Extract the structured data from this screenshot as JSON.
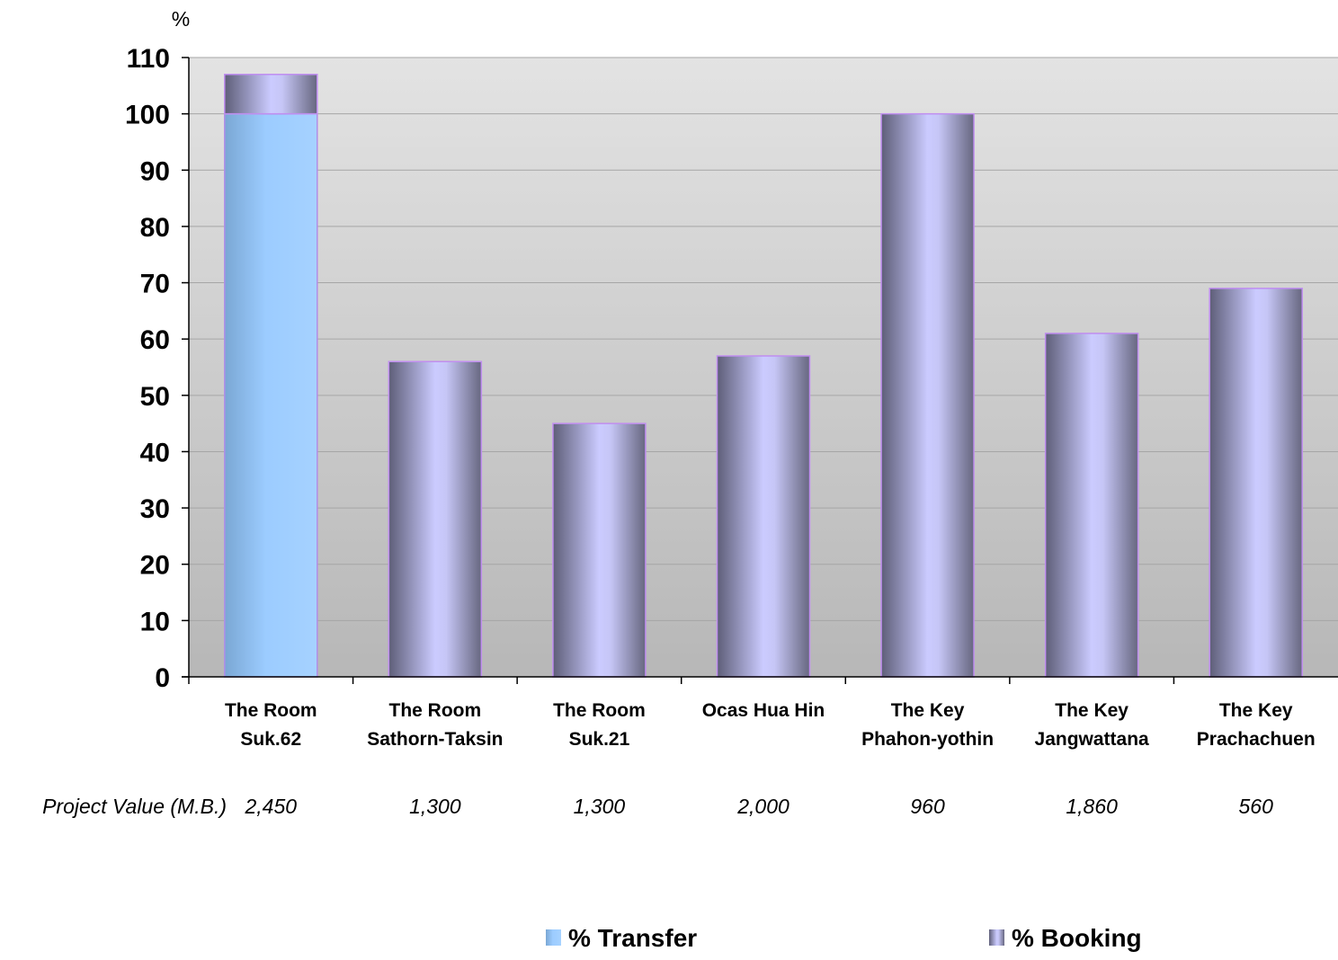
{
  "chart_data": {
    "type": "bar",
    "stacked": true,
    "ylabel": "%",
    "ylim": [
      0,
      110
    ],
    "yticks": [
      0,
      10,
      20,
      30,
      40,
      50,
      60,
      70,
      80,
      90,
      100,
      110
    ],
    "grid": true,
    "legend_position": "bottom",
    "categories": [
      [
        "The Room",
        "Suk.62"
      ],
      [
        "The Room",
        "Sathorn-Taksin"
      ],
      [
        "The Room",
        "Suk.21"
      ],
      [
        "Ocas Hua Hin"
      ],
      [
        "The Key",
        "Phahon-yothin"
      ],
      [
        "The Key",
        "Jangwattana"
      ],
      [
        "The Key",
        "Prachachuen"
      ]
    ],
    "series": [
      {
        "name": "% Transfer",
        "color": "#99ccff",
        "values": [
          100,
          0,
          0,
          0,
          0,
          0,
          0
        ]
      },
      {
        "name": "% Booking",
        "color": "#ccccff",
        "values": [
          7,
          56,
          45,
          57,
          100,
          61,
          69
        ]
      }
    ],
    "project_value": {
      "label": "Project Value (M.B.)",
      "values": [
        "2,450",
        "1,300",
        "1,300",
        "2,000",
        "960",
        "1,860",
        "560"
      ]
    }
  }
}
